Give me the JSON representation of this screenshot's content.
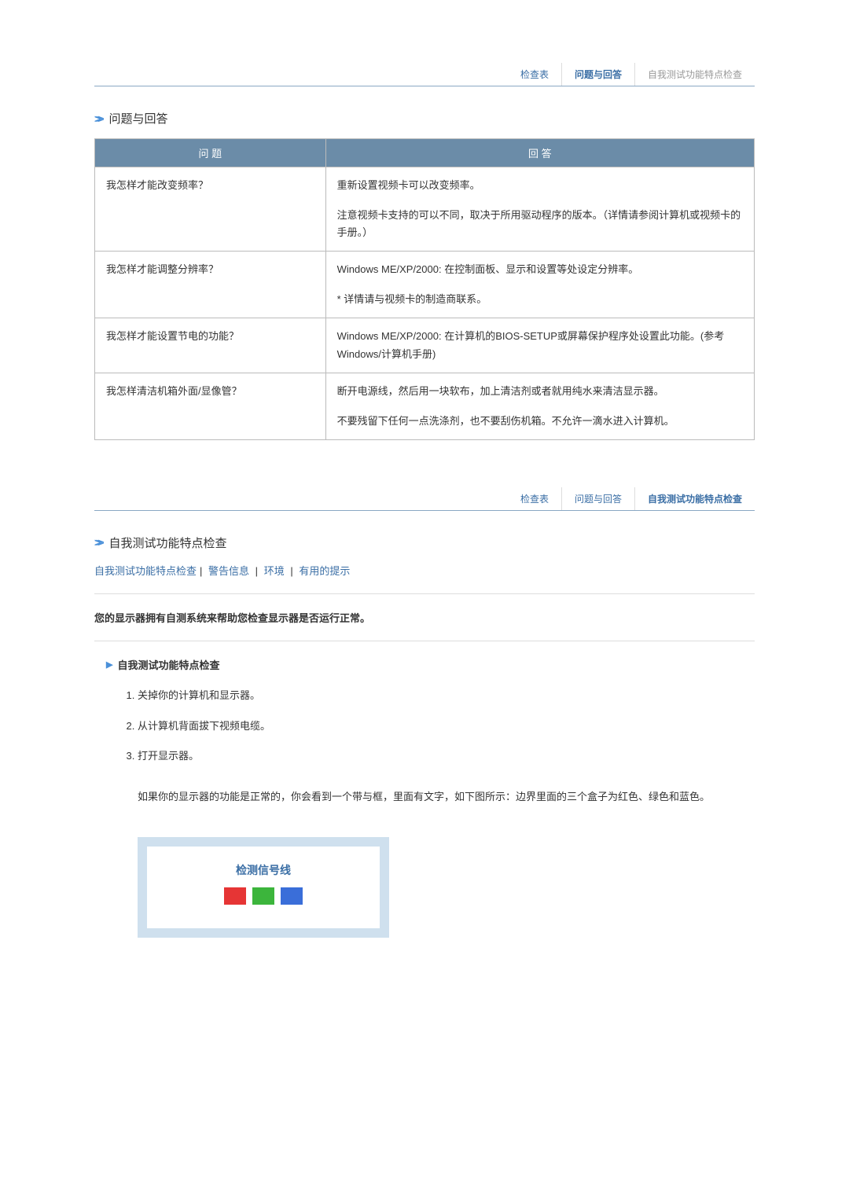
{
  "tabs1": {
    "item1": "检查表",
    "item2": "问题与回答",
    "item3": "自我测试功能特点检查"
  },
  "section1": {
    "title": "问题与回答"
  },
  "qa": {
    "q_header": "问 题",
    "a_header": "回 答",
    "rows": [
      {
        "q": "我怎样才能改变频率？",
        "a1": "重新设置视频卡可以改变频率。",
        "a2": "注意视频卡支持的可以不同，取决于所用驱动程序的版本。（详情请参阅计算机或视频卡的手册。）"
      },
      {
        "q": "我怎样才能调整分辨率？",
        "a1": "Windows ME/XP/2000: 在控制面板、显示和设置等处设定分辨率。",
        "a2": "* 详情请与视频卡的制造商联系。"
      },
      {
        "q": "我怎样才能设置节电的功能？",
        "a1": "Windows ME/XP/2000: 在计算机的BIOS-SETUP或屏幕保护程序处设置此功能。(参考 Windows/计算机手册)"
      },
      {
        "q": "我怎样清洁机箱外面/显像管？",
        "a1": "断开电源线，然后用一块软布，加上清洁剂或者就用纯水来清洁显示器。",
        "a2": "不要残留下任何一点洗涤剂，也不要刮伤机箱。不允许一滴水进入计算机。"
      }
    ]
  },
  "tabs2": {
    "item1": "检查表",
    "item2": "问题与回答",
    "item3": "自我测试功能特点检查"
  },
  "section2": {
    "title": "自我测试功能特点检查",
    "links": {
      "l1": "自我测试功能特点检查",
      "l2": "警告信息",
      "l3": "环境",
      "l4": "有用的提示"
    }
  },
  "intro": "您的显示器拥有自测系统来帮助您检查显示器是否运行正常。",
  "subsection": {
    "title": "自我测试功能特点检查",
    "steps": [
      "关掉你的计算机和显示器。",
      "从计算机背面拔下视频电缆。",
      "打开显示器。"
    ],
    "note": "如果你的显示器的功能是正常的，你会看到一个带与框，里面有文字，如下图所示：边界里面的三个盒子为红色、绿色和蓝色。"
  },
  "signalbox": {
    "title": "检测信号线",
    "colors": [
      "#e63535",
      "#3cb53c",
      "#3a6ed9"
    ]
  }
}
